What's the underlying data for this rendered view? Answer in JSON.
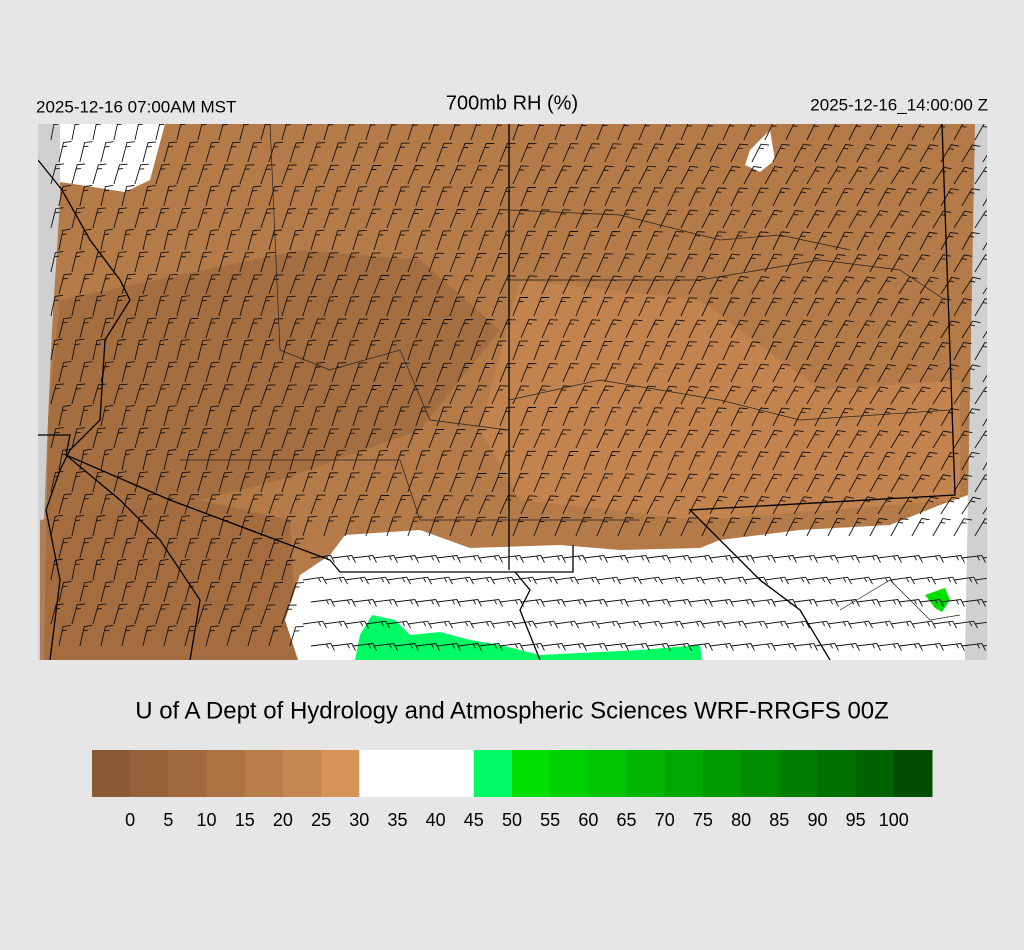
{
  "header": {
    "left": "2025-12-16 07:00AM MST",
    "title": "700mb RH (%)",
    "right": "2025-12-16_14:00:00 Z"
  },
  "credit": "U of A Dept of Hydrology and Atmospheric Sciences WRF-RRGFS 00Z",
  "colorbar": {
    "levels": [
      0,
      5,
      10,
      15,
      20,
      25,
      30,
      35,
      40,
      45,
      50,
      55,
      60,
      65,
      70,
      75,
      80,
      85,
      90,
      95,
      100
    ],
    "colors": [
      "#8a5a34",
      "#956139",
      "#a1693e",
      "#ad7343",
      "#b97d4a",
      "#c68651",
      "#d59559",
      "#ffffff",
      "#ffffff",
      "#ffffff",
      "#00fa64",
      "#00e000",
      "#00d200",
      "#00c400",
      "#00b600",
      "#00a800",
      "#009a00",
      "#008c00",
      "#007e00",
      "#007000",
      "#006200",
      "#004c00"
    ]
  }
}
